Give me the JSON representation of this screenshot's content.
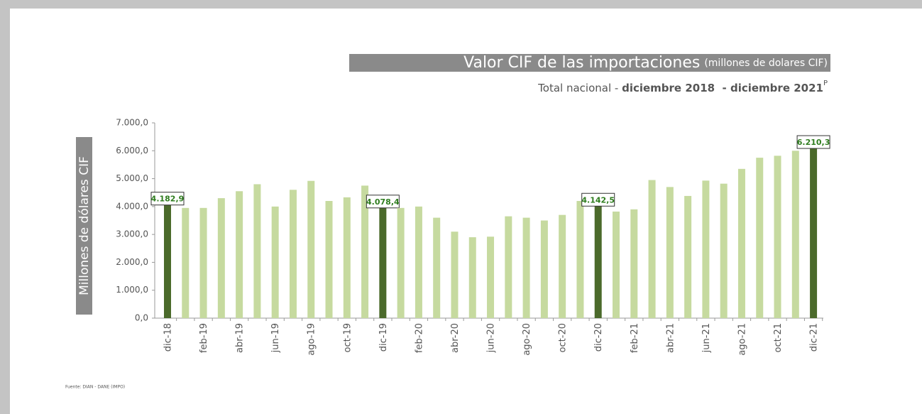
{
  "chart_data": {
    "type": "bar",
    "title": "Valor CIF de las importaciones",
    "title_unit": "(millones de dolares CIF)",
    "subtitle": "Total nacional - ",
    "subtitle_period": "diciembre 2018  - diciembre 2021",
    "subtitle_mark": "P",
    "y_label": "Millones de dólares CIF",
    "source": "Fuente: DIAN - DANE (IMPO)",
    "categories": [
      "dic-18",
      null,
      "feb-19",
      null,
      "abr-19",
      null,
      "jun-19",
      null,
      "ago-19",
      null,
      "oct-19",
      null,
      "dic-19",
      null,
      "feb-20",
      null,
      "abr-20",
      null,
      "jun-20",
      null,
      "ago-20",
      null,
      "oct-20",
      null,
      "dic-20",
      null,
      "feb-21",
      null,
      "abr-21",
      null,
      "jun-21",
      null,
      "ago-21",
      null,
      "oct-21",
      null,
      "dic-21"
    ],
    "values": [
      4182.9,
      3950,
      3950,
      4300,
      4550,
      4800,
      4000,
      4600,
      4920,
      4200,
      4330,
      4750,
      4078.4,
      3950,
      4000,
      3600,
      3100,
      2900,
      2920,
      3650,
      3600,
      3500,
      3700,
      4200,
      4142.5,
      3820,
      3900,
      4950,
      4700,
      4380,
      4930,
      4820,
      5350,
      5750,
      5820,
      6000,
      6210.3
    ],
    "value_labels": [
      "4.182,9",
      null,
      null,
      null,
      null,
      null,
      null,
      null,
      null,
      null,
      null,
      null,
      "4.078,4",
      null,
      null,
      null,
      null,
      null,
      null,
      null,
      null,
      null,
      null,
      null,
      "4.142,5",
      null,
      null,
      null,
      null,
      null,
      null,
      null,
      null,
      null,
      null,
      null,
      "6.210,3"
    ],
    "colors": [
      "#4b6a2b",
      "#c6da9f",
      "#c6da9f",
      "#c6da9f",
      "#c6da9f",
      "#c6da9f",
      "#c6da9f",
      "#c6da9f",
      "#c6da9f",
      "#c6da9f",
      "#c6da9f",
      "#c6da9f",
      "#4b6a2b",
      "#c6da9f",
      "#c6da9f",
      "#c6da9f",
      "#c6da9f",
      "#c6da9f",
      "#c6da9f",
      "#c6da9f",
      "#c6da9f",
      "#c6da9f",
      "#c6da9f",
      "#c6da9f",
      "#4b6a2b",
      "#c6da9f",
      "#c6da9f",
      "#c6da9f",
      "#c6da9f",
      "#c6da9f",
      "#c6da9f",
      "#c6da9f",
      "#c6da9f",
      "#c6da9f",
      "#c6da9f",
      "#c6da9f",
      "#4b6a2b"
    ],
    "ylim": [
      0,
      7000
    ],
    "yticks": [
      {
        "value": 0,
        "label": "0,0"
      },
      {
        "value": 1000,
        "label": "1.000,0"
      },
      {
        "value": 2000,
        "label": "2.000,0"
      },
      {
        "value": 3000,
        "label": "3.000,0"
      },
      {
        "value": 4000,
        "label": "4.000,0"
      },
      {
        "value": 5000,
        "label": "5.000,0"
      },
      {
        "value": 6000,
        "label": "6.000,0"
      },
      {
        "value": 7000,
        "label": "7.000,0"
      }
    ],
    "grid": false
  }
}
